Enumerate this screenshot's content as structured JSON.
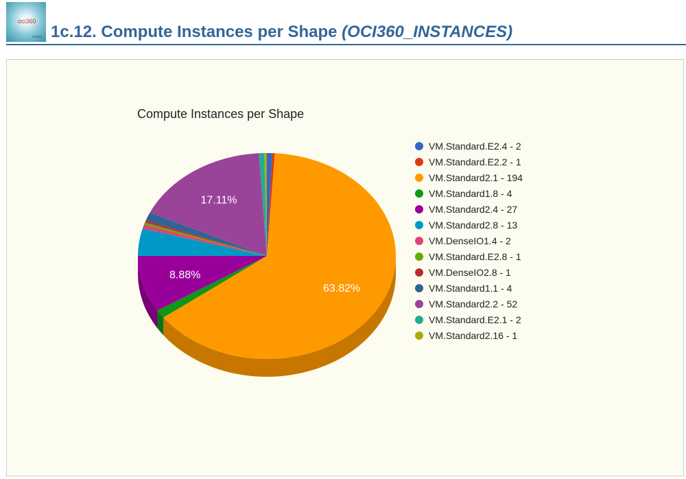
{
  "header": {
    "logo_text": "oci360",
    "logo_small": "v.note",
    "title_main": "1c.12. Compute Instances per Shape ",
    "title_em": "(OCI360_INSTANCES)"
  },
  "chart_data": {
    "type": "pie",
    "title": "Compute Instances per Shape",
    "legend_position": "right",
    "slices": [
      {
        "label": "VM.Standard.E2.4 - 2",
        "value": 2,
        "color": "#3366cc"
      },
      {
        "label": "VM.Standard.E2.2 - 1",
        "value": 1,
        "color": "#dc3912"
      },
      {
        "label": "VM.Standard2.1 - 194",
        "value": 194,
        "color": "#ff9900",
        "pct_label": "63.82%"
      },
      {
        "label": "VM.Standard1.8 - 4",
        "value": 4,
        "color": "#109618"
      },
      {
        "label": "VM.Standard2.4 - 27",
        "value": 27,
        "color": "#990099",
        "pct_label": "8.88%"
      },
      {
        "label": "VM.Standard2.8 - 13",
        "value": 13,
        "color": "#0099c6"
      },
      {
        "label": "VM.DenseIO1.4 - 2",
        "value": 2,
        "color": "#dd4477"
      },
      {
        "label": "VM.Standard.E2.8 - 1",
        "value": 1,
        "color": "#66aa00"
      },
      {
        "label": "VM.DenseIO2.8 - 1",
        "value": 1,
        "color": "#b82e2e"
      },
      {
        "label": "VM.Standard1.1 - 4",
        "value": 4,
        "color": "#316395"
      },
      {
        "label": "VM.Standard2.2 - 52",
        "value": 52,
        "color": "#994499",
        "pct_label": "17.11%"
      },
      {
        "label": "VM.Standard.E2.1 - 2",
        "value": 2,
        "color": "#22aa99"
      },
      {
        "label": "VM.Standard2.16 - 1",
        "value": 1,
        "color": "#aaaa11"
      }
    ]
  }
}
